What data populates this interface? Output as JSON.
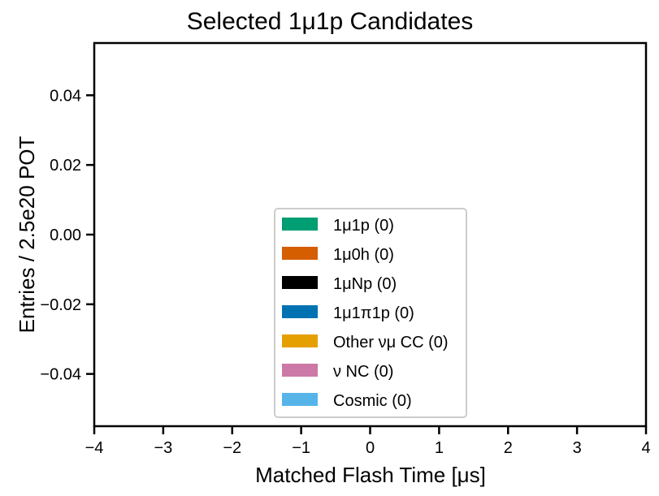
{
  "chart_data": {
    "type": "bar",
    "title": "Selected 1μ1p Candidates",
    "xlabel": "Matched Flash Time [μs]",
    "ylabel": "Entries / 2.5e20 POT",
    "xlim": [
      -4,
      4
    ],
    "ylim": [
      -0.055,
      0.055
    ],
    "x_ticks": [
      -4,
      -3,
      -2,
      -1,
      0,
      1,
      2,
      3,
      4
    ],
    "x_tick_labels": [
      "−4",
      "−3",
      "−2",
      "−1",
      "0",
      "1",
      "2",
      "3",
      "4"
    ],
    "y_ticks": [
      0.04,
      0.02,
      0.0,
      -0.02,
      -0.04
    ],
    "y_tick_labels": [
      "0.04",
      "0.02",
      "0.00",
      "−0.02",
      "−0.04"
    ],
    "grid": false,
    "legend_position": "lower-center",
    "series": [
      {
        "name": "1μ1p (0)",
        "color": "#009E73",
        "values": []
      },
      {
        "name": "1μ0h (0)",
        "color": "#D55E00",
        "values": []
      },
      {
        "name": "1μNp (0)",
        "color": "#000000",
        "values": []
      },
      {
        "name": "1μ1π1p (0)",
        "color": "#0072B2",
        "values": []
      },
      {
        "name": "Other νμ CC (0)",
        "color": "#E69F00",
        "values": []
      },
      {
        "name": "ν NC (0)",
        "color": "#CC79A7",
        "values": []
      },
      {
        "name": "Cosmic (0)",
        "color": "#56B4E9",
        "values": []
      }
    ]
  }
}
